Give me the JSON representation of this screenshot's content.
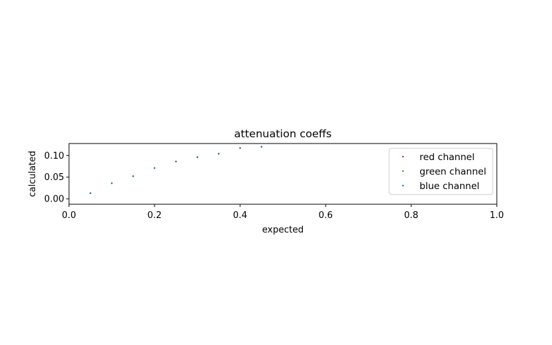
{
  "chart_data": {
    "type": "scatter",
    "title": "attenuation coeffs",
    "xlabel": "expected",
    "ylabel": "calculated",
    "xlim": [
      0,
      1
    ],
    "ylim": [
      -0.0125,
      0.1275
    ],
    "xticks": [
      "0.0",
      "0.2",
      "0.4",
      "0.6",
      "0.8",
      "1.0"
    ],
    "yticks": [
      "0.00",
      "0.05",
      "0.10"
    ],
    "grid": false,
    "legend_position": "upper right",
    "x": [
      0.05,
      0.1,
      0.15,
      0.2,
      0.25,
      0.3,
      0.35,
      0.4,
      0.45
    ],
    "series": [
      {
        "name": "red channel",
        "color": "#d62728",
        "values": [
          0.013,
          0.036,
          0.052,
          0.071,
          0.086,
          0.096,
          0.104,
          0.117,
          0.12
        ]
      },
      {
        "name": "green channel",
        "color": "#2ca02c",
        "values": [
          0.013,
          0.036,
          0.052,
          0.071,
          0.086,
          0.096,
          0.104,
          0.117,
          0.12
        ]
      },
      {
        "name": "blue channel",
        "color": "#1f77b4",
        "values": [
          0.013,
          0.036,
          0.052,
          0.071,
          0.086,
          0.096,
          0.104,
          0.117,
          0.12
        ]
      }
    ]
  }
}
